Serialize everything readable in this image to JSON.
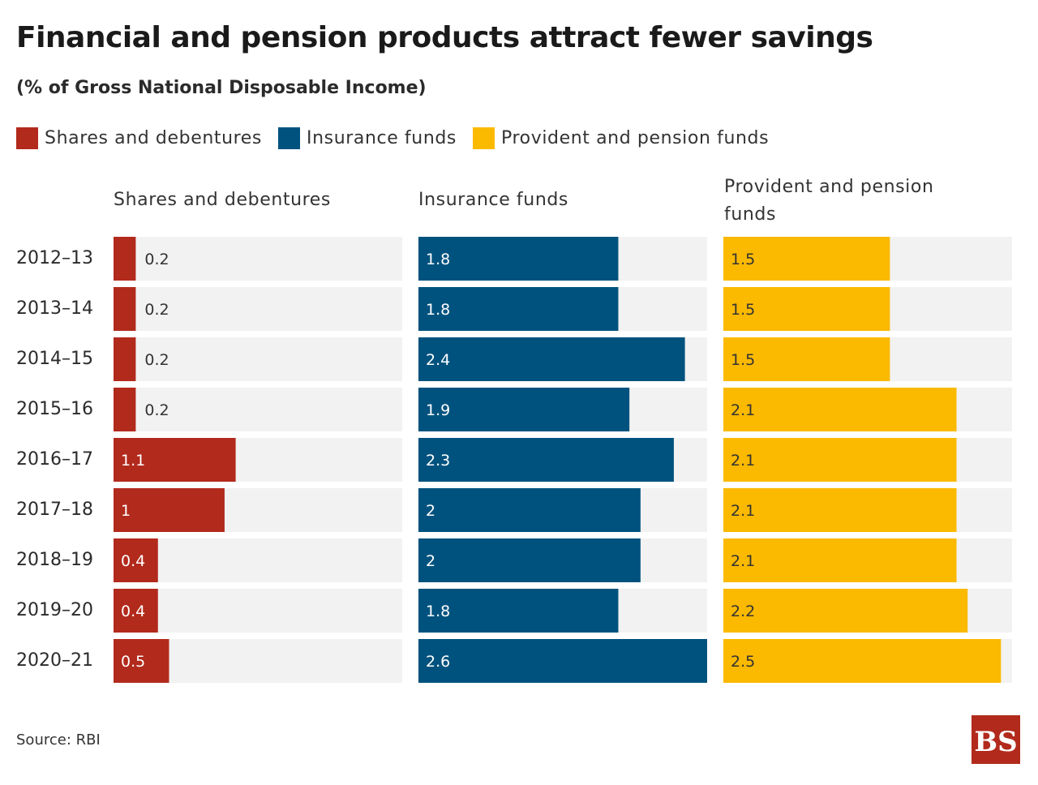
{
  "title": "Financial and pension products attract fewer savings",
  "subtitle": "(% of Gross National Disposable Income)",
  "legend": [
    {
      "label": "Shares and debentures",
      "color": "#b22a1c"
    },
    {
      "label": "Insurance funds",
      "color": "#00527e"
    },
    {
      "label": "Provident and pension funds",
      "color": "#fbb900"
    }
  ],
  "source": "Source: RBI",
  "logo_text": "BS",
  "chart_data": {
    "type": "bar",
    "orientation": "horizontal",
    "categories": [
      "2012-13",
      "2013-14",
      "2014-15",
      "2015-16",
      "2016-17",
      "2017-18",
      "2018-19",
      "2019-20",
      "2020-21"
    ],
    "series": [
      {
        "name": "Shares and debentures",
        "color": "#b22a1c",
        "values": [
          0.2,
          0.2,
          0.2,
          0.2,
          1.1,
          1,
          0.4,
          0.4,
          0.5
        ],
        "xlim": [
          0,
          2.6
        ]
      },
      {
        "name": "Insurance funds",
        "color": "#00527e",
        "values": [
          1.8,
          1.8,
          2.4,
          1.9,
          2.3,
          2,
          2,
          1.8,
          2.6
        ],
        "xlim": [
          0,
          2.6
        ]
      },
      {
        "name": "Provident and pension funds",
        "color": "#fbb900",
        "values": [
          1.5,
          1.5,
          1.5,
          2.1,
          2.1,
          2.1,
          2.1,
          2.2,
          2.5
        ],
        "xlim": [
          0,
          2.6
        ]
      }
    ],
    "panel_titles": [
      "Shares and debentures",
      "Insurance funds",
      "Provident and pension\nfunds"
    ],
    "title": "Financial and pension products attract fewer savings",
    "subtitle": "(% of Gross National Disposable Income)"
  }
}
